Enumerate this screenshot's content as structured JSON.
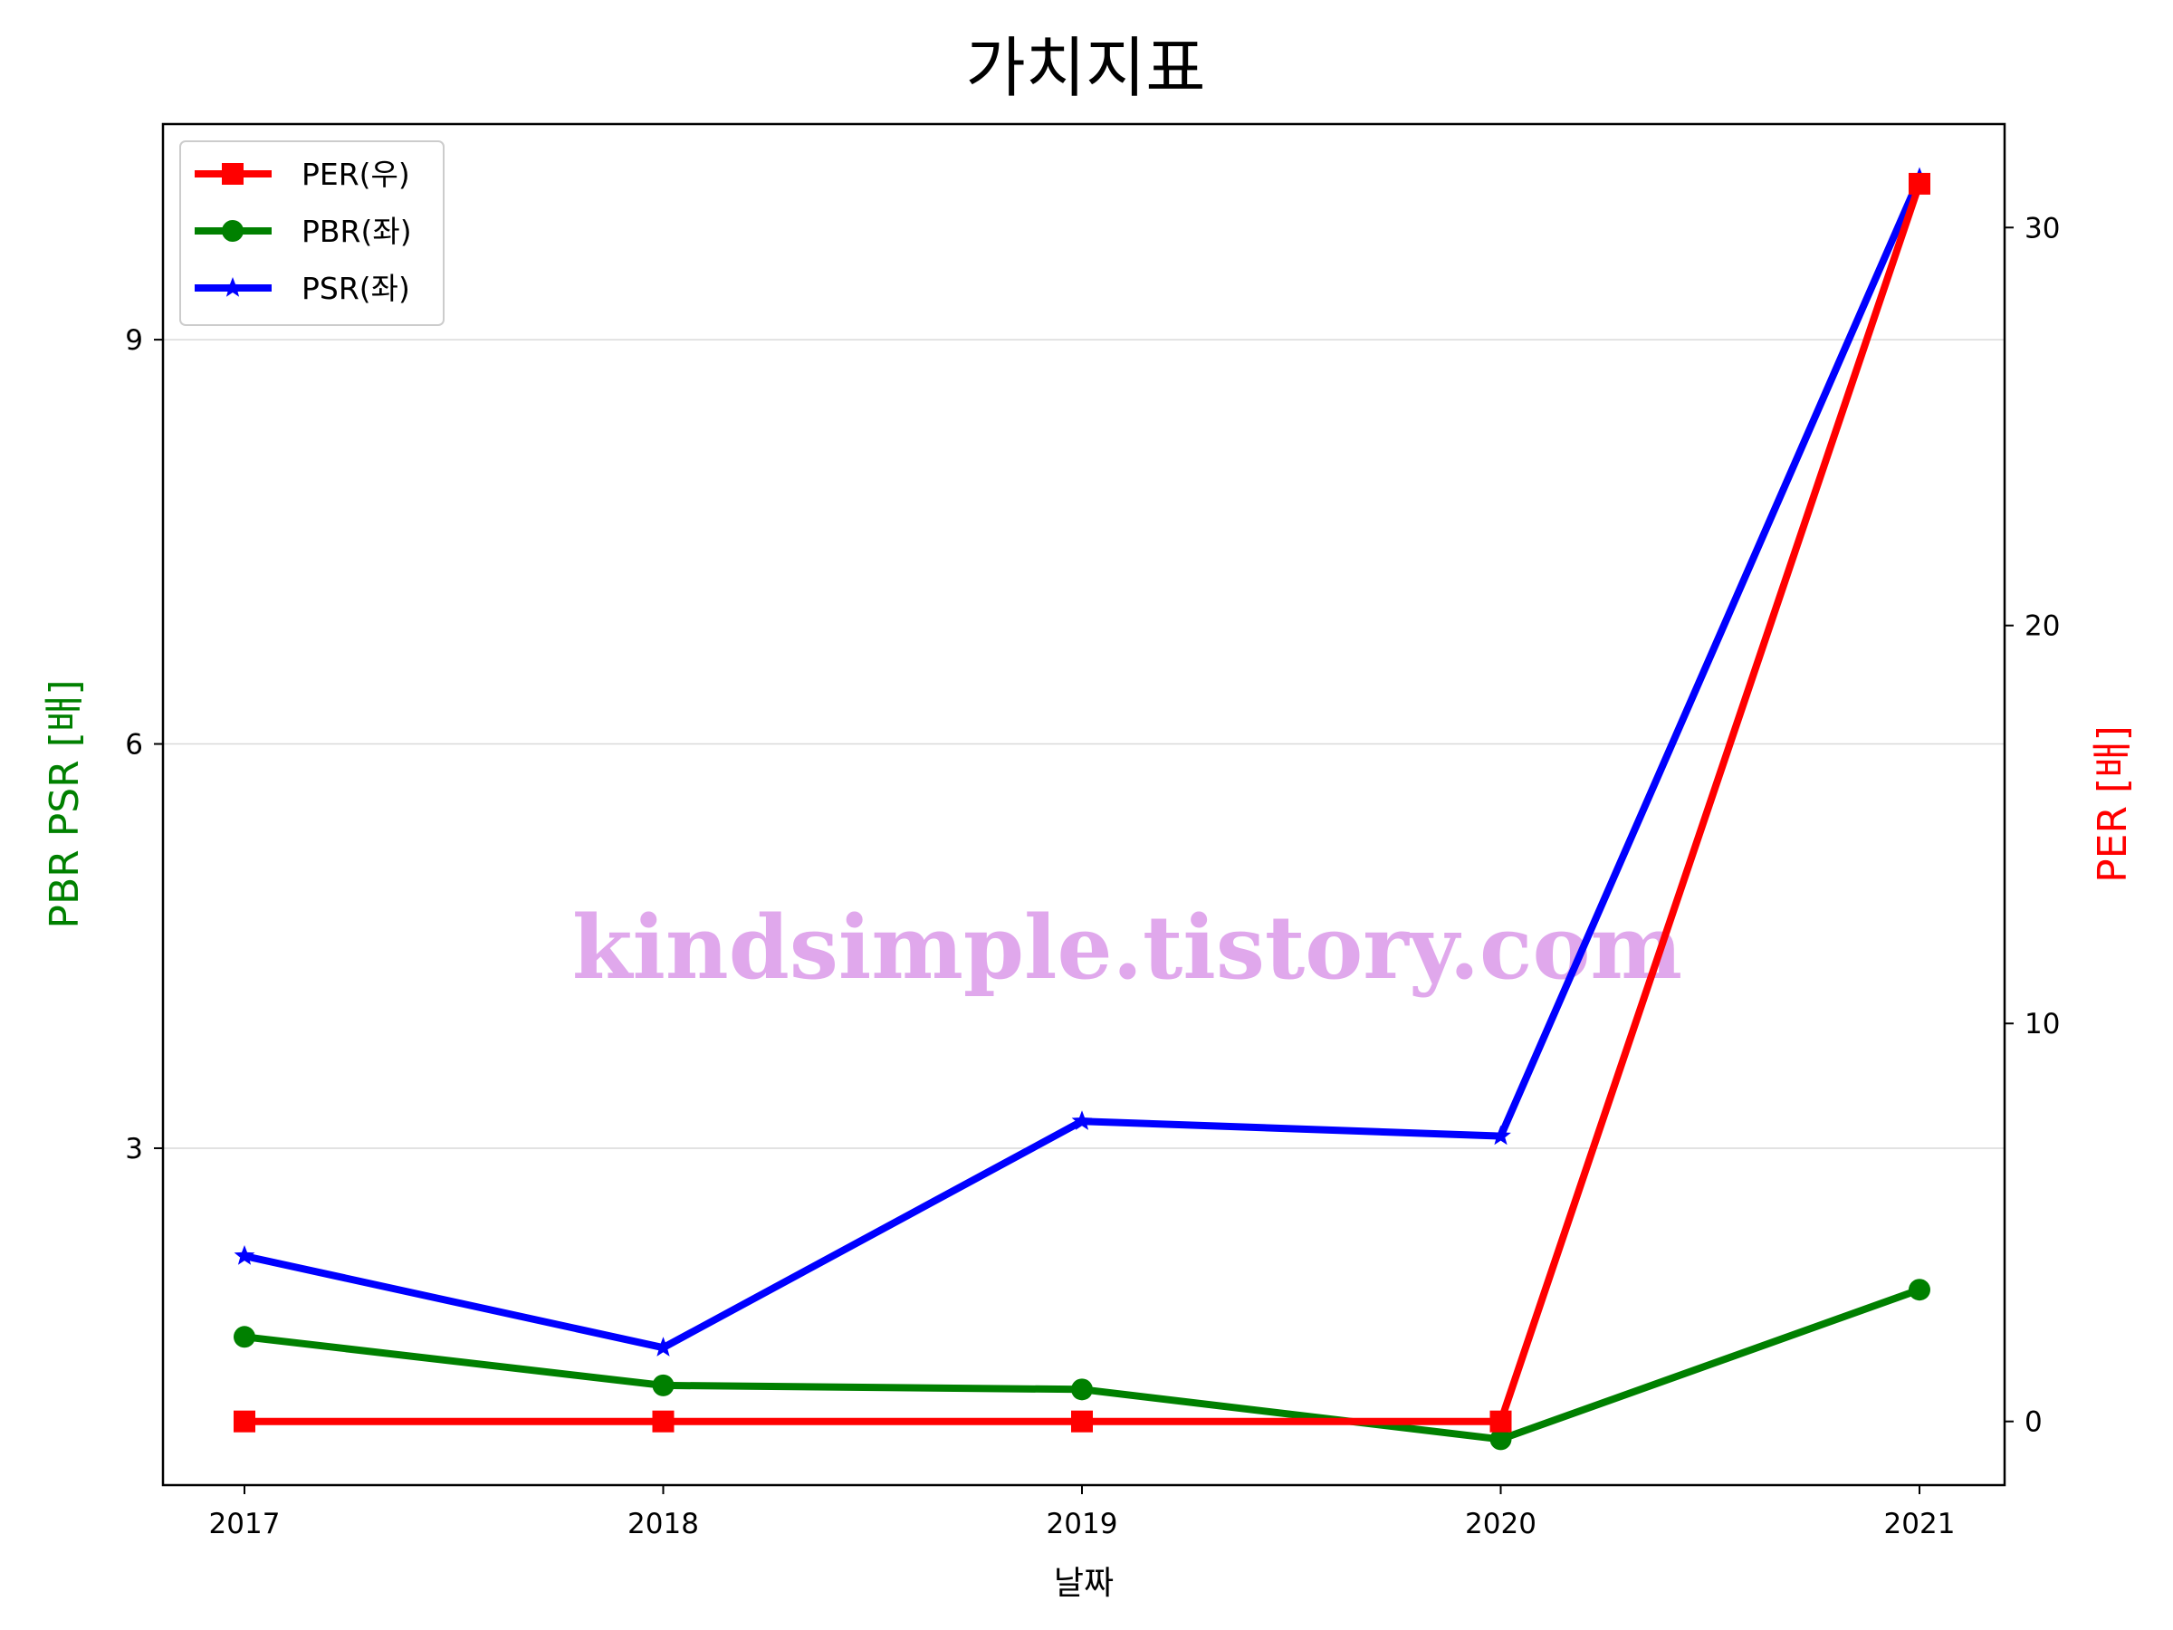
{
  "chart_data": {
    "type": "line",
    "title": "가치지표",
    "xlabel": "날짜",
    "ylabel_left": "PBR PSR [배]",
    "ylabel_right": "PER [배]",
    "categories": [
      "2017",
      "2018",
      "2019",
      "2020",
      "2021"
    ],
    "left_axis": {
      "ticks": [
        "3",
        "6",
        "9"
      ],
      "ylim": [
        0.5,
        10.6
      ],
      "grid": true
    },
    "right_axis": {
      "ticks": [
        "0",
        "10",
        "20",
        "30"
      ],
      "ylim": [
        -1.6,
        32.6
      ]
    },
    "series": [
      {
        "name": "PER(우)",
        "axis": "right",
        "color": "#ff0000",
        "marker": "square",
        "values": [
          0,
          0,
          0,
          0,
          31.1
        ]
      },
      {
        "name": "PBR(좌)",
        "axis": "left",
        "color": "#008000",
        "marker": "circle",
        "values": [
          1.6,
          1.24,
          1.21,
          0.84,
          1.95
        ]
      },
      {
        "name": "PSR(좌)",
        "axis": "left",
        "color": "#0000ff",
        "marker": "star",
        "values": [
          2.2,
          1.52,
          3.2,
          3.09,
          10.2
        ]
      }
    ],
    "legend_position": "top-left",
    "watermark": "kindsimple.tistory.com"
  }
}
